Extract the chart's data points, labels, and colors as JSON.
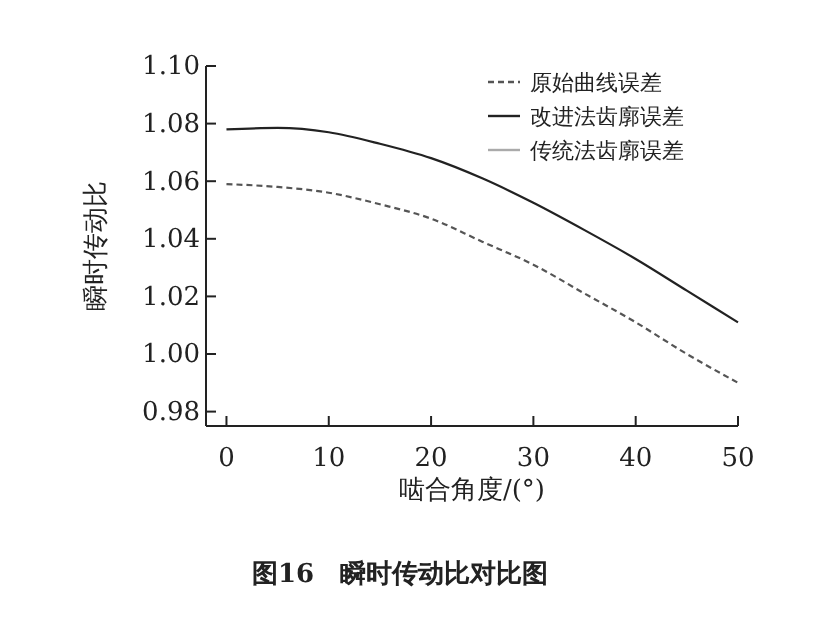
{
  "chart_data": {
    "type": "line",
    "title": "图16　瞬时传动比对比图",
    "xlabel": "啮合角度/(°)",
    "ylabel": "瞬时传动比",
    "x": [
      0,
      5,
      10,
      15,
      20,
      25,
      30,
      35,
      40,
      45,
      50
    ],
    "series": [
      {
        "name": "原始曲线误差",
        "color": "#555555",
        "line_style": "dashed",
        "values": [
          1.059,
          1.058,
          1.056,
          1.052,
          1.047,
          1.039,
          1.031,
          1.021,
          1.011,
          1.0,
          0.99
        ]
      },
      {
        "name": "改进法齿廓误差",
        "color": "#222222",
        "line_style": "solid",
        "values": [
          1.078,
          1.0785,
          1.077,
          1.073,
          1.068,
          1.061,
          1.0525,
          1.043,
          1.033,
          1.022,
          1.011
        ]
      },
      {
        "name": "传统法齿廓误差",
        "color": "#aaaaaa",
        "line_style": "solid",
        "values": [
          null,
          null,
          null,
          null,
          null,
          null,
          null,
          null,
          null,
          null,
          null
        ]
      }
    ],
    "xlim": [
      -2,
      50
    ],
    "xticks": [
      0,
      10,
      20,
      30,
      40,
      50
    ],
    "ylim": [
      0.975,
      1.1
    ],
    "yticks": [
      {
        "value": 0.98,
        "label": "0.98"
      },
      {
        "value": 1.0,
        "label": "1.00"
      },
      {
        "value": 1.02,
        "label": "1.02"
      },
      {
        "value": 1.04,
        "label": "1.04"
      },
      {
        "value": 1.06,
        "label": "1.06"
      },
      {
        "value": 1.08,
        "label": "1.08"
      },
      {
        "value": 1.1,
        "label": "1.10"
      }
    ],
    "legend": "top right",
    "grid": false
  }
}
